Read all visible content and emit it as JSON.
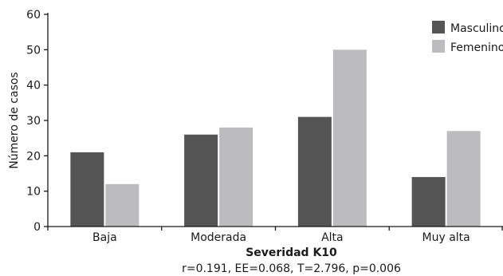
{
  "chart_data": {
    "type": "bar",
    "categories": [
      "Baja",
      "Moderada",
      "Alta",
      "Muy alta"
    ],
    "series": [
      {
        "name": "Masculino",
        "values": [
          21,
          26,
          31,
          14
        ],
        "color": "#545454"
      },
      {
        "name": "Femenino",
        "values": [
          12,
          28,
          50,
          27
        ],
        "color": "#bcbcbe"
      }
    ],
    "xlabel": "Severidad K10",
    "ylabel": "Número de casos",
    "ylim": [
      0,
      60
    ],
    "yticks": [
      0,
      10,
      20,
      30,
      40,
      50,
      60
    ],
    "legend": "top-right",
    "grid": false,
    "note": "r=0.191, EE=0.068, T=2.796, p=0.006"
  }
}
